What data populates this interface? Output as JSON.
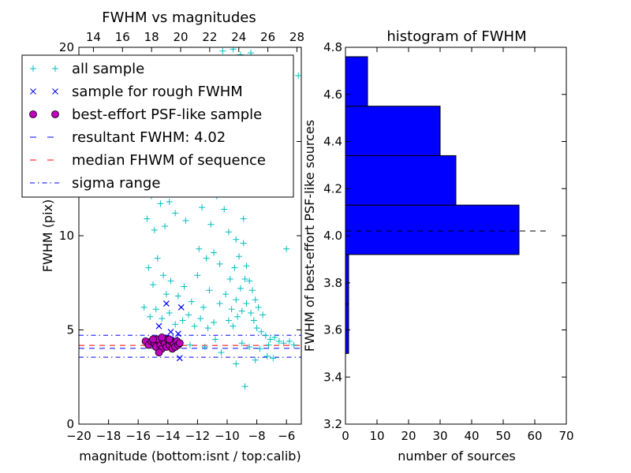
{
  "chart_data": [
    {
      "type": "scatter",
      "title": "FWHM vs magnitudes",
      "xlabel": "magnitude (bottom:isnt / top:calib)",
      "ylabel": "FWHM (pix)",
      "xlim": [
        -20,
        -5
      ],
      "ylim": [
        0,
        20
      ],
      "top_xlim": [
        13,
        28.3
      ],
      "x_ticks": [
        -20,
        -18,
        -16,
        -14,
        -12,
        -10,
        -8,
        -6
      ],
      "x_tick_labels": [
        "−20",
        "−18",
        "−16",
        "−14",
        "−12",
        "−10",
        "−8",
        "−6"
      ],
      "top_ticks": [
        14,
        16,
        18,
        20,
        22,
        24,
        26,
        28
      ],
      "top_tick_labels": [
        "14",
        "16",
        "18",
        "20",
        "22",
        "24",
        "26",
        "28"
      ],
      "y_ticks": [
        0,
        5,
        10,
        15,
        20
      ],
      "y_tick_labels": [
        "0",
        "5",
        "10",
        "",
        "20"
      ],
      "legend_position": "upper-left",
      "legend": [
        {
          "label": "all sample",
          "marker": "+",
          "color": "#00bfbf"
        },
        {
          "label": "sample for rough FWHM",
          "marker": "x",
          "color": "#0000ff"
        },
        {
          "label": "best-effort PSF-like sample",
          "marker": "o",
          "color": "#bf00bf"
        },
        {
          "label": "resultant FWHM: 4.02",
          "marker": "--",
          "color": "#0000ff"
        },
        {
          "label": "median FHWM of sequence",
          "marker": "--",
          "color": "#ff0000"
        },
        {
          "label": "sigma range",
          "marker": "-.",
          "color": "#0000ff"
        }
      ],
      "series": [
        {
          "name": "all sample",
          "style": "plus",
          "color": "#00bfbf",
          "points": [
            [
              -9.6,
              19.9
            ],
            [
              -9.1,
              19.6
            ],
            [
              -10.3,
              19.8
            ],
            [
              -8.4,
              19.7
            ],
            [
              -14.9,
              14.2
            ],
            [
              -14.6,
              13.2
            ],
            [
              -14.3,
              12.8
            ],
            [
              -13.1,
              13.2
            ],
            [
              -15.1,
              12.1
            ],
            [
              -14.5,
              11.7
            ],
            [
              -13.9,
              11.8
            ],
            [
              -13.5,
              11.2
            ],
            [
              -15.4,
              10.9
            ],
            [
              -14.9,
              10.3
            ],
            [
              -14.2,
              10.5
            ],
            [
              -12.8,
              10.8
            ],
            [
              -11.7,
              11.5
            ],
            [
              -11.1,
              10.6
            ],
            [
              -10.7,
              12.1
            ],
            [
              -10.2,
              11.4
            ],
            [
              -9.9,
              10.2
            ],
            [
              -9.4,
              9.8
            ],
            [
              -8.9,
              10.9
            ],
            [
              -8.6,
              12.6
            ],
            [
              -11.9,
              9.3
            ],
            [
              -11.4,
              8.8
            ],
            [
              -10.9,
              9.1
            ],
            [
              -10.5,
              8.5
            ],
            [
              -15.3,
              8.3
            ],
            [
              -15.0,
              7.4
            ],
            [
              -14.7,
              8.8
            ],
            [
              -14.3,
              7.9
            ],
            [
              -14.1,
              6.9
            ],
            [
              -13.8,
              7.6
            ],
            [
              -13.3,
              6.8
            ],
            [
              -12.9,
              7.3
            ],
            [
              -12.4,
              6.5
            ],
            [
              -12.0,
              7.9
            ],
            [
              -11.6,
              6.2
            ],
            [
              -11.2,
              7.1
            ],
            [
              -15.6,
              6.2
            ],
            [
              -15.2,
              5.7
            ],
            [
              -14.8,
              6.1
            ],
            [
              -14.4,
              5.6
            ],
            [
              -13.9,
              5.9
            ],
            [
              -13.5,
              5.3
            ],
            [
              -13.0,
              5.5
            ],
            [
              -12.6,
              5.8
            ],
            [
              -12.2,
              5.2
            ],
            [
              -11.8,
              5.6
            ],
            [
              -11.3,
              5.1
            ],
            [
              -10.9,
              5.4
            ],
            [
              -10.5,
              6.4
            ],
            [
              -10.1,
              6.9
            ],
            [
              -9.8,
              7.7
            ],
            [
              -9.5,
              8.3
            ],
            [
              -9.2,
              8.9
            ],
            [
              -8.9,
              9.6
            ],
            [
              -8.7,
              8.4
            ],
            [
              -8.5,
              7.6
            ],
            [
              -8.3,
              7.1
            ],
            [
              -8.1,
              6.6
            ],
            [
              -7.9,
              6.2
            ],
            [
              -7.6,
              5.8
            ],
            [
              -9.7,
              6.1
            ],
            [
              -9.4,
              6.6
            ],
            [
              -9.1,
              7.2
            ],
            [
              -8.8,
              7.7
            ],
            [
              -9.9,
              5.5
            ],
            [
              -9.6,
              5.2
            ],
            [
              -9.3,
              5.7
            ],
            [
              -9.0,
              6.0
            ],
            [
              -8.7,
              6.4
            ],
            [
              -8.4,
              5.9
            ],
            [
              -8.2,
              5.5
            ],
            [
              -8.0,
              5.1
            ],
            [
              -7.7,
              4.9
            ],
            [
              -7.4,
              4.7
            ],
            [
              -7.1,
              4.5
            ],
            [
              -6.8,
              4.6
            ],
            [
              -6.5,
              4.4
            ],
            [
              -6.2,
              4.3
            ],
            [
              -5.8,
              4.4
            ],
            [
              -5.5,
              4.2
            ],
            [
              -6.0,
              9.3
            ],
            [
              -5.2,
              18.5
            ],
            [
              -7.3,
              3.6
            ],
            [
              -8.8,
              2.0
            ],
            [
              -9.4,
              3.2
            ],
            [
              -8.1,
              3.4
            ],
            [
              -6.9,
              3.5
            ],
            [
              -10.4,
              3.8
            ],
            [
              -11.5,
              4.1
            ],
            [
              -12.5,
              4.2
            ],
            [
              -13.2,
              4.4
            ],
            [
              -10.8,
              4.5
            ],
            [
              -9.0,
              4.3
            ],
            [
              -8.5,
              4.1
            ],
            [
              -7.8,
              4.0
            ],
            [
              -7.2,
              4.2
            ]
          ]
        },
        {
          "name": "sample for rough FWHM",
          "style": "cross",
          "color": "#0000ff",
          "points": [
            [
              -14.1,
              6.4
            ],
            [
              -13.1,
              6.2
            ],
            [
              -14.6,
              5.2
            ],
            [
              -13.8,
              4.9
            ],
            [
              -14.3,
              4.6
            ],
            [
              -13.5,
              4.5
            ],
            [
              -13.2,
              3.5
            ],
            [
              -14.9,
              4.3
            ],
            [
              -13.6,
              4.1
            ],
            [
              -13.3,
              4.8
            ]
          ]
        },
        {
          "name": "best-effort PSF-like sample",
          "style": "circle",
          "color": "#bf00bf",
          "points": [
            [
              -15.5,
              4.4
            ],
            [
              -15.3,
              4.2
            ],
            [
              -15.1,
              4.4
            ],
            [
              -14.9,
              4.3
            ],
            [
              -14.8,
              4.1
            ],
            [
              -14.7,
              4.5
            ],
            [
              -14.5,
              4.2
            ],
            [
              -14.4,
              4.0
            ],
            [
              -14.3,
              4.4
            ],
            [
              -14.2,
              4.3
            ],
            [
              -14.1,
              4.1
            ],
            [
              -14.0,
              4.5
            ],
            [
              -13.9,
              4.2
            ],
            [
              -13.8,
              4.4
            ],
            [
              -13.7,
              4.0
            ],
            [
              -13.6,
              4.3
            ],
            [
              -13.5,
              4.1
            ],
            [
              -13.4,
              4.4
            ],
            [
              -13.3,
              4.2
            ],
            [
              -13.2,
              4.3
            ],
            [
              -14.6,
              3.8
            ],
            [
              -15.0,
              4.5
            ],
            [
              -13.9,
              4.5
            ],
            [
              -14.4,
              4.6
            ]
          ]
        }
      ],
      "hlines": [
        {
          "name": "resultant FWHM: 4.02",
          "y": 4.02,
          "color": "#0000ff",
          "style": "dashed"
        },
        {
          "name": "median FHWM of sequence",
          "y": 4.18,
          "color": "#ff0000",
          "style": "dashed"
        },
        {
          "name": "sigma range",
          "y": 4.72,
          "color": "#0000ff",
          "style": "dashdot"
        },
        {
          "name": "sigma range",
          "y": 3.55,
          "color": "#0000ff",
          "style": "dashdot"
        }
      ]
    },
    {
      "type": "bar",
      "orientation": "horizontal",
      "title": "histogram of FWHM",
      "xlabel": "number of sources",
      "ylabel": "FWHM of best-effort PSF-like sources",
      "xlim": [
        0,
        70
      ],
      "ylim": [
        3.2,
        4.8
      ],
      "x_ticks": [
        0,
        10,
        20,
        30,
        40,
        50,
        60,
        70
      ],
      "x_tick_labels": [
        "0",
        "10",
        "20",
        "30",
        "40",
        "50",
        "60",
        "70"
      ],
      "y_ticks": [
        3.2,
        3.4,
        3.6,
        3.8,
        4.0,
        4.2,
        4.4,
        4.6,
        4.8
      ],
      "y_tick_labels": [
        "3.2",
        "3.4",
        "3.6",
        "3.8",
        "4.0",
        "4.2",
        "4.4",
        "4.6",
        "4.8"
      ],
      "bar_color": "#0000ff",
      "bins": [
        {
          "from": 3.5,
          "to": 3.71,
          "count": 1
        },
        {
          "from": 3.71,
          "to": 3.92,
          "count": 1
        },
        {
          "from": 3.92,
          "to": 4.13,
          "count": 55
        },
        {
          "from": 4.13,
          "to": 4.34,
          "count": 35
        },
        {
          "from": 4.34,
          "to": 4.55,
          "count": 30
        },
        {
          "from": 4.55,
          "to": 4.76,
          "count": 7
        }
      ],
      "hline": {
        "y": 4.02,
        "x_from": 0,
        "x_to": 64,
        "color": "#000000",
        "style": "dashed"
      }
    }
  ]
}
